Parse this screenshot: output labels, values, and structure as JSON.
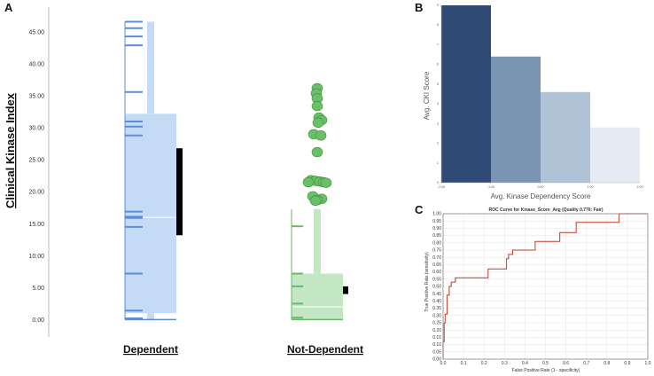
{
  "panels": [
    {
      "id": "A",
      "letter": "A"
    },
    {
      "id": "B",
      "letter": "B"
    },
    {
      "id": "C",
      "letter": "C"
    }
  ],
  "chart_data": [
    {
      "panel": "A",
      "type": "scatter",
      "ylabel": "Clinical Kinase Index",
      "ylim": [
        -0.5,
        47.5
      ],
      "yticks": [
        0,
        5,
        10,
        15,
        20,
        25,
        30,
        35,
        40,
        45
      ],
      "ytick_labels": [
        "0.00",
        "5.00",
        "10.00",
        "15.00",
        "20.00",
        "25.00",
        "30.00",
        "35.00",
        "40.00",
        "45.00"
      ],
      "groups": [
        {
          "label": "Dependent",
          "color": "#c5dbf5",
          "line_color": "#5b8dd9",
          "box": {
            "q1": 1.0,
            "median": 16.0,
            "q3": 32.2
          },
          "whisker": {
            "low": 0.0,
            "high": 46.6
          },
          "mean_bar": {
            "low": 13.2,
            "high": 26.8
          },
          "dash_values": [
            46.6,
            45.6,
            44.3,
            42.9,
            35.6,
            31.0,
            30.2,
            28.8,
            16.9,
            16.1,
            15.9,
            14.5,
            7.2,
            1.4,
            0.2
          ]
        },
        {
          "label": "Not-Dependent",
          "color": "#c3e6c3",
          "line_color": "#66bb66",
          "dot_color": "#6abf69",
          "box": {
            "q1": 0.0,
            "median": 2.0,
            "q3": 7.2
          },
          "whisker": {
            "low": 0.0,
            "high": 17.3
          },
          "mean_bar": {
            "low": 4.0,
            "high": 5.2
          },
          "dash_values": [
            14.6,
            7.2,
            5.2,
            2.5,
            0.3
          ],
          "points": [
            36.2,
            35.4,
            34.6,
            33.4,
            31.6,
            31.2,
            30.8,
            29.0,
            28.8,
            26.2,
            21.8,
            21.7,
            21.6,
            21.5,
            21.5,
            21.4,
            19.3,
            18.9,
            18.7,
            18.6
          ]
        }
      ]
    },
    {
      "panel": "B",
      "type": "bar",
      "xlabel": "Avg. Kinase Dependency Score",
      "ylabel": "Avg. CKI Score",
      "bins": [
        [
          -2.0,
          -1.0
        ],
        [
          -1.0,
          0.0
        ],
        [
          0.0,
          1.0
        ],
        [
          1.0,
          2.0
        ]
      ],
      "values": [
        9.0,
        6.4,
        4.6,
        2.8
      ],
      "colors": [
        "#2f4a74",
        "#7a94b4",
        "#b0c2d6",
        "#e5ebf4"
      ],
      "xlim": [
        -2.0,
        2.0
      ],
      "ylim": [
        0,
        9.0
      ],
      "xtick_labels": [
        "-2.00",
        "-1.00",
        "0.00",
        "1.00",
        "2.00"
      ],
      "ytick_labels": [
        "0",
        "1",
        "2",
        "3",
        "4",
        "5",
        "6",
        "7",
        "8",
        "9"
      ]
    },
    {
      "panel": "C",
      "type": "line",
      "title": "ROC Curve for Kinase_Score_Avg  (Quality 0.776: Fair)",
      "xlabel": "False Positive Rate (1 - specificity)",
      "ylabel": "True Positive Rate (sensitivity)",
      "xlim": [
        0,
        1
      ],
      "ylim": [
        0,
        1
      ],
      "xticks": [
        0,
        0.1,
        0.2,
        0.3,
        0.4,
        0.5,
        0.6,
        0.7,
        0.8,
        0.9,
        1.0
      ],
      "xtick_labels": [
        "0.0",
        "0.1",
        "0.2",
        "0.3",
        "0.4",
        "0.5",
        "0.6",
        "0.7",
        "0.8",
        "0.9",
        "1.0"
      ],
      "yticks": [
        0,
        0.05,
        0.1,
        0.15,
        0.2,
        0.25,
        0.3,
        0.35,
        0.4,
        0.45,
        0.5,
        0.55,
        0.6,
        0.65,
        0.7,
        0.75,
        0.8,
        0.85,
        0.9,
        0.95,
        1.0
      ],
      "ytick_labels": [
        "0.00",
        "0.05",
        "0.10",
        "0.15",
        "0.20",
        "0.25",
        "0.30",
        "0.35",
        "0.40",
        "0.45",
        "0.50",
        "0.55",
        "0.60",
        "0.65",
        "0.70",
        "0.75",
        "0.80",
        "0.85",
        "0.90",
        "0.95",
        "1.00"
      ],
      "line_color": "#c0392b",
      "x": [
        0,
        0,
        0.005,
        0.005,
        0.01,
        0.01,
        0.02,
        0.02,
        0.03,
        0.03,
        0.04,
        0.04,
        0.06,
        0.06,
        0.22,
        0.22,
        0.31,
        0.31,
        0.32,
        0.32,
        0.34,
        0.34,
        0.45,
        0.45,
        0.57,
        0.57,
        0.65,
        0.65,
        0.86,
        0.86,
        1.0
      ],
      "y": [
        0,
        0.12,
        0.12,
        0.25,
        0.25,
        0.31,
        0.31,
        0.44,
        0.44,
        0.5,
        0.5,
        0.53,
        0.53,
        0.56,
        0.56,
        0.62,
        0.62,
        0.69,
        0.69,
        0.72,
        0.72,
        0.75,
        0.75,
        0.81,
        0.81,
        0.87,
        0.87,
        0.94,
        0.94,
        1.0,
        1.0
      ]
    }
  ]
}
